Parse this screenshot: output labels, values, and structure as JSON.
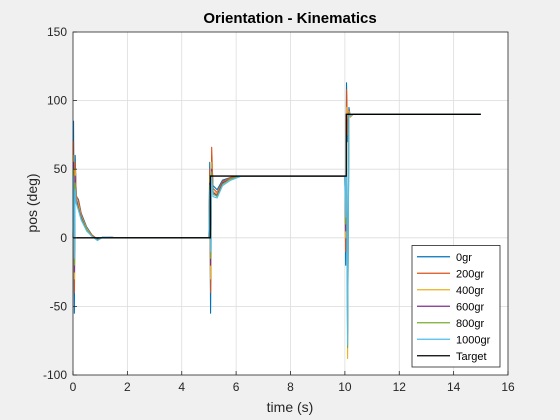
{
  "chart_data": {
    "type": "line",
    "title": "Orientation - Kinematics",
    "xlabel": "time (s)",
    "ylabel": "pos (deg)",
    "xlim": [
      0,
      16
    ],
    "ylim": [
      -100,
      150
    ],
    "xticks": [
      0,
      2,
      4,
      6,
      8,
      10,
      12,
      14,
      16
    ],
    "yticks": [
      -100,
      -50,
      0,
      50,
      100,
      150
    ],
    "grid": true,
    "legend_position": "bottom-right",
    "colors": {
      "0gr": "#0072bd",
      "200gr": "#d95319",
      "400gr": "#edb120",
      "600gr": "#7e2f8e",
      "800gr": "#77ac30",
      "1000gr": "#4dbeee",
      "Target": "#000000"
    },
    "target": {
      "name": "Target",
      "x": [
        0,
        5.05,
        5.05,
        10.05,
        10.05,
        15
      ],
      "y": [
        0,
        0,
        45,
        45,
        90,
        90
      ]
    },
    "series": [
      {
        "name": "0gr",
        "x": [
          0,
          0.02,
          0.05,
          0.08,
          0.12,
          0.2,
          0.3,
          0.5,
          0.7,
          0.9,
          1.1,
          1.3,
          1.6,
          2.0,
          3.0,
          4.0,
          5.0,
          5.03,
          5.06,
          5.1,
          5.15,
          5.3,
          5.5,
          5.8,
          6.2,
          7.0,
          8.0,
          9.0,
          10.0,
          10.03,
          10.06,
          10.1,
          10.15,
          10.2,
          10.3,
          10.5,
          11.0,
          12.0,
          13.0,
          14.0,
          15.0
        ],
        "y": [
          0,
          85,
          -55,
          60,
          30,
          28,
          18,
          8,
          2,
          -1,
          0.5,
          0.5,
          0,
          0,
          0,
          0,
          0,
          55,
          -55,
          60,
          38,
          35,
          42,
          44,
          45,
          45,
          45,
          45,
          45,
          -20,
          113,
          70,
          95,
          88,
          90,
          90,
          90,
          90,
          90,
          90,
          90
        ]
      },
      {
        "name": "200gr",
        "x": [
          0,
          0.02,
          0.05,
          0.08,
          0.12,
          0.2,
          0.3,
          0.5,
          0.7,
          0.9,
          1.1,
          1.3,
          1.6,
          2.0,
          3.0,
          4.0,
          5.0,
          5.03,
          5.06,
          5.1,
          5.15,
          5.3,
          5.5,
          5.8,
          6.2,
          7.0,
          8.0,
          9.0,
          10.0,
          10.03,
          10.06,
          10.1,
          10.15,
          10.2,
          10.3,
          10.5,
          11.0,
          12.0,
          13.0,
          14.0,
          15.0
        ],
        "y": [
          0,
          70,
          -40,
          55,
          31,
          27,
          17,
          7,
          2,
          -1,
          0.5,
          0.5,
          0,
          0,
          0,
          0,
          0,
          50,
          -40,
          66,
          36,
          33,
          41,
          44,
          45,
          45,
          45,
          45,
          45,
          -10,
          108,
          75,
          93,
          89,
          90,
          90,
          90,
          90,
          90,
          90,
          90
        ]
      },
      {
        "name": "400gr",
        "x": [
          0,
          0.02,
          0.05,
          0.08,
          0.12,
          0.2,
          0.3,
          0.5,
          0.7,
          0.9,
          1.1,
          1.3,
          1.6,
          2.0,
          3.0,
          4.0,
          5.0,
          5.03,
          5.06,
          5.1,
          5.15,
          5.3,
          5.5,
          5.8,
          6.2,
          7.0,
          8.0,
          9.0,
          10.0,
          10.03,
          10.06,
          10.1,
          10.15,
          10.2,
          10.3,
          10.5,
          11.0,
          12.0,
          13.0,
          14.0,
          15.0
        ],
        "y": [
          0,
          60,
          -30,
          50,
          29,
          24,
          16,
          7,
          1,
          -1,
          0.5,
          0.5,
          0,
          0,
          0,
          0,
          0,
          45,
          -30,
          55,
          34,
          32,
          40,
          43,
          45,
          45,
          45,
          45,
          45,
          0,
          95,
          -88,
          92,
          88,
          90,
          90,
          90,
          90,
          90,
          90,
          90
        ]
      },
      {
        "name": "600gr",
        "x": [
          0,
          0.02,
          0.05,
          0.08,
          0.12,
          0.2,
          0.3,
          0.5,
          0.7,
          0.9,
          1.1,
          1.3,
          1.6,
          2.0,
          3.0,
          4.0,
          5.0,
          5.03,
          5.06,
          5.1,
          5.15,
          5.3,
          5.5,
          5.8,
          6.2,
          7.0,
          8.0,
          9.0,
          10.0,
          10.03,
          10.06,
          10.1,
          10.15,
          10.2,
          10.3,
          10.5,
          11.0,
          12.0,
          13.0,
          14.0,
          15.0
        ],
        "y": [
          0,
          55,
          -25,
          45,
          28,
          22,
          15,
          6,
          1,
          -1,
          0.5,
          0.5,
          0,
          0,
          0,
          0,
          0,
          40,
          -20,
          50,
          33,
          31,
          40,
          43,
          45,
          45,
          45,
          45,
          45,
          5,
          90,
          -70,
          91,
          89,
          90,
          90,
          90,
          90,
          90,
          90,
          90
        ]
      },
      {
        "name": "800gr",
        "x": [
          0,
          0.02,
          0.05,
          0.08,
          0.12,
          0.2,
          0.3,
          0.5,
          0.7,
          0.9,
          1.1,
          1.3,
          1.6,
          2.0,
          3.0,
          4.0,
          5.0,
          5.03,
          5.06,
          5.1,
          5.15,
          5.3,
          5.5,
          5.8,
          6.2,
          7.0,
          8.0,
          9.0,
          10.0,
          10.03,
          10.06,
          10.1,
          10.15,
          10.2,
          10.3,
          10.5,
          11.0,
          12.0,
          13.0,
          14.0,
          15.0
        ],
        "y": [
          0,
          50,
          -20,
          40,
          26,
          21,
          14,
          6,
          1,
          -1.5,
          0.5,
          0.5,
          0,
          0,
          0,
          0,
          0,
          38,
          -15,
          48,
          32,
          30,
          39,
          43,
          45,
          45,
          45,
          45,
          45,
          10,
          88,
          -80,
          91,
          89,
          90,
          90,
          90,
          90,
          90,
          90,
          90
        ]
      },
      {
        "name": "1000gr",
        "x": [
          0,
          0.02,
          0.05,
          0.08,
          0.12,
          0.2,
          0.3,
          0.5,
          0.7,
          0.9,
          1.1,
          1.3,
          1.6,
          2.0,
          3.0,
          4.0,
          5.0,
          5.03,
          5.06,
          5.1,
          5.15,
          5.3,
          5.5,
          5.8,
          6.2,
          7.0,
          8.0,
          9.0,
          10.0,
          10.03,
          10.06,
          10.1,
          10.15,
          10.2,
          10.3,
          10.5,
          11.0,
          12.0,
          13.0,
          14.0,
          15.0
        ],
        "y": [
          0,
          45,
          -15,
          35,
          25,
          20,
          13,
          5,
          1,
          -2,
          0.5,
          0.5,
          0,
          0,
          0,
          0,
          0,
          35,
          -10,
          45,
          30,
          29,
          38,
          42,
          45,
          45,
          45,
          45,
          45,
          15,
          85,
          -78,
          90,
          89,
          90,
          90,
          90,
          90,
          90,
          90,
          90
        ]
      }
    ],
    "legend": [
      "0gr",
      "200gr",
      "400gr",
      "600gr",
      "800gr",
      "1000gr",
      "Target"
    ]
  }
}
